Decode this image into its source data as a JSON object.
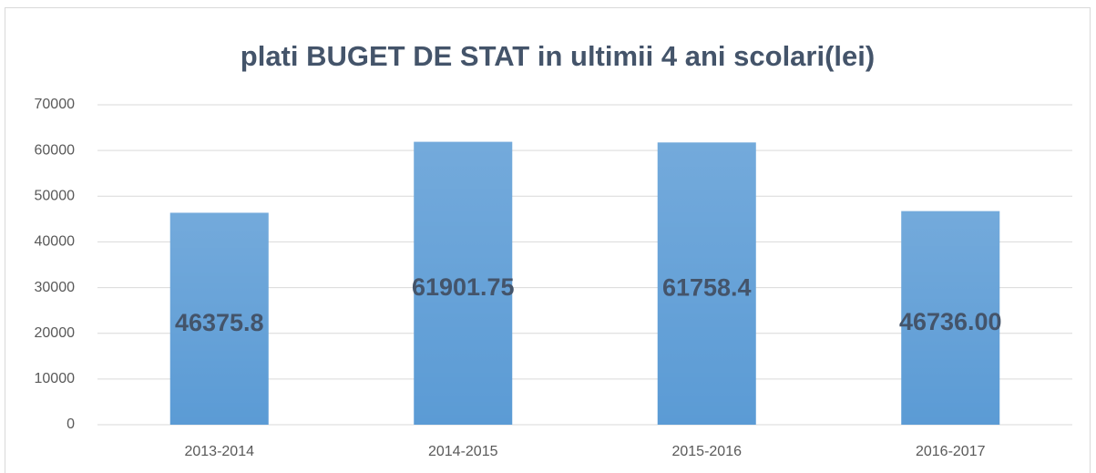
{
  "chart_data": {
    "type": "bar",
    "title": "plati BUGET DE STAT in ultimii 4 ani scolari(lei)",
    "categories": [
      "2013-2014",
      "2014-2015",
      "2015-2016",
      "2016-2017"
    ],
    "values": [
      46375.8,
      61901.75,
      61758.4,
      46736
    ],
    "value_labels": [
      "46375.8",
      "61901.75",
      "61758.4",
      "46736.00"
    ],
    "color": "#5b9bd5",
    "ylim": [
      0,
      70000
    ],
    "yticks": [
      0,
      10000,
      20000,
      30000,
      40000,
      50000,
      60000,
      70000
    ],
    "grid": true
  }
}
